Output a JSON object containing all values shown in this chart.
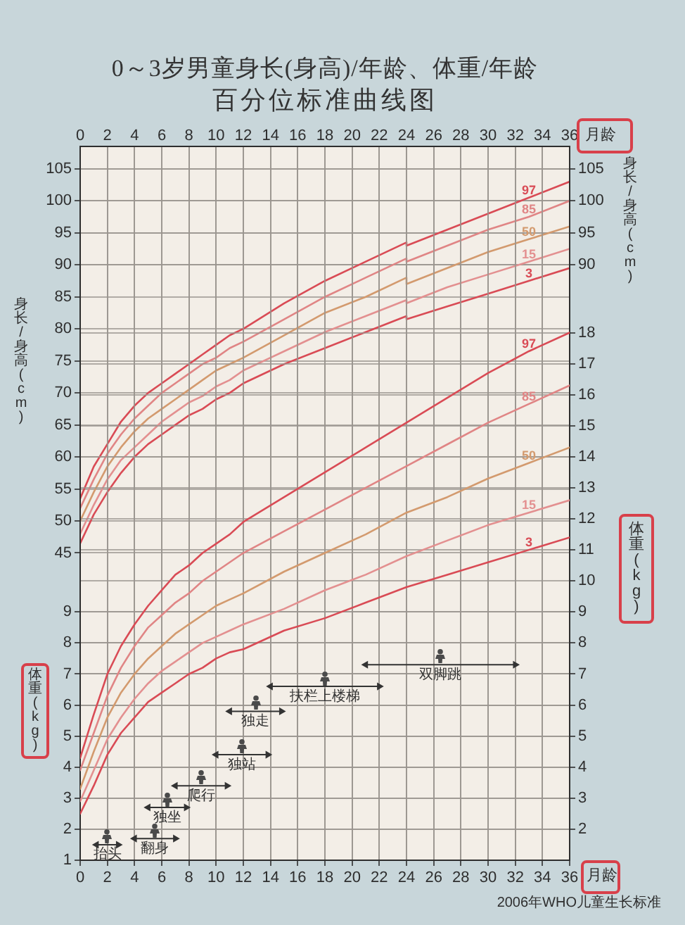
{
  "chart_data": [
    {
      "type": "line",
      "title": "0～3岁男童身长(身高)/年龄、体重/年龄",
      "subtitle": "百分位标准曲线图",
      "x2label": "月龄",
      "ylabel": "身长/身高(cm)",
      "y2label": "身长/身高(cm)",
      "xlim": [
        0,
        36
      ],
      "x2lim": [
        0,
        36
      ],
      "x2ticks": [
        0,
        2,
        4,
        6,
        8,
        10,
        12,
        14,
        16,
        18,
        20,
        22,
        24,
        26,
        28,
        30,
        32,
        34,
        36
      ],
      "ylim": [
        -3,
        108.5
      ],
      "yticks": [
        45,
        50,
        55,
        60,
        65,
        70,
        75,
        80,
        85,
        90,
        95,
        100,
        105
      ],
      "y2lim": [
        -3,
        108.5
      ],
      "y2ticks": [
        90,
        95,
        100,
        105
      ],
      "grid": true,
      "series": [
        {
          "name": "97",
          "color": "#d94b55",
          "x": [
            0,
            1,
            2,
            3,
            4,
            5,
            6,
            7,
            8,
            9,
            10,
            11,
            12,
            15,
            18,
            21,
            24,
            24,
            27,
            30,
            33,
            36
          ],
          "values": [
            53.5,
            58.5,
            62,
            65.5,
            68,
            70,
            71.5,
            73,
            74.5,
            76,
            77.5,
            79,
            80,
            84,
            87.5,
            90.5,
            93.5,
            93,
            95.5,
            98,
            100.5,
            103
          ]
        },
        {
          "name": "85",
          "color": "#e08585",
          "x": [
            0,
            1,
            2,
            3,
            4,
            5,
            6,
            7,
            8,
            9,
            10,
            11,
            12,
            15,
            18,
            21,
            24,
            24,
            27,
            30,
            33,
            36
          ],
          "values": [
            52,
            56.5,
            60.5,
            63.5,
            66,
            68,
            70,
            71.5,
            73,
            74.5,
            75.5,
            77,
            78,
            81.5,
            85,
            88,
            91,
            90.5,
            93,
            95.5,
            97.5,
            100
          ]
        },
        {
          "name": "50",
          "color": "#d39a6e",
          "x": [
            0,
            1,
            2,
            3,
            4,
            5,
            6,
            7,
            8,
            9,
            10,
            11,
            12,
            15,
            18,
            21,
            24,
            24,
            27,
            30,
            33,
            36
          ],
          "values": [
            50,
            54.5,
            58.5,
            61.5,
            64,
            66,
            67.5,
            69,
            70.5,
            72,
            73.5,
            74.5,
            75.5,
            79,
            82.5,
            85,
            88,
            87,
            89.5,
            92,
            94,
            96
          ]
        },
        {
          "name": "15",
          "color": "#e39090",
          "x": [
            0,
            1,
            2,
            3,
            4,
            5,
            6,
            7,
            8,
            9,
            10,
            11,
            12,
            15,
            18,
            21,
            24,
            24,
            27,
            30,
            33,
            36
          ],
          "values": [
            48,
            52.5,
            56.5,
            59.5,
            61.5,
            63.5,
            65.5,
            67,
            68.5,
            69.5,
            71,
            72,
            73.5,
            76.5,
            79.5,
            82,
            84.5,
            84,
            86.5,
            88.5,
            90.5,
            92.5
          ]
        },
        {
          "name": "3",
          "color": "#d94b55",
          "x": [
            0,
            1,
            2,
            3,
            4,
            5,
            6,
            7,
            8,
            9,
            10,
            11,
            12,
            15,
            18,
            21,
            24,
            24,
            27,
            30,
            33,
            36
          ],
          "values": [
            46.5,
            51,
            54.5,
            57.5,
            60,
            62,
            63.5,
            65,
            66.5,
            67.5,
            69,
            70,
            71.5,
            74.5,
            77,
            79.5,
            82,
            81.5,
            83.5,
            85.5,
            87.5,
            89.5
          ]
        }
      ]
    },
    {
      "type": "line",
      "xlabel": "月龄",
      "ylabel": "体重(kg)",
      "y2label": "体重(kg)",
      "xlim": [
        0,
        36
      ],
      "xticks": [
        0,
        2,
        4,
        6,
        8,
        10,
        12,
        14,
        16,
        18,
        20,
        22,
        24,
        26,
        28,
        30,
        32,
        34,
        36
      ],
      "ylim": [
        1,
        24
      ],
      "yticks": [
        1,
        2,
        3,
        4,
        5,
        6,
        7,
        8,
        9
      ],
      "y2lim": [
        1,
        24
      ],
      "y2ticks": [
        2,
        3,
        4,
        5,
        6,
        7,
        8,
        9,
        10,
        11,
        12,
        13,
        14,
        15,
        16,
        17,
        18
      ],
      "grid": true,
      "annotations": [
        "2006年WHO儿童生长标准"
      ],
      "series": [
        {
          "name": "97",
          "color": "#d94b55",
          "x": [
            0,
            1,
            2,
            3,
            4,
            5,
            6,
            7,
            8,
            9,
            10,
            11,
            12,
            15,
            18,
            21,
            24,
            27,
            30,
            33,
            36
          ],
          "values": [
            4.3,
            5.7,
            7.0,
            7.9,
            8.6,
            9.2,
            9.7,
            10.2,
            10.5,
            10.9,
            11.2,
            11.5,
            11.9,
            12.7,
            13.5,
            14.3,
            15.1,
            15.9,
            16.7,
            17.4,
            18.0
          ]
        },
        {
          "name": "85",
          "color": "#e08585",
          "x": [
            0,
            1,
            2,
            3,
            4,
            5,
            6,
            7,
            8,
            9,
            10,
            11,
            12,
            15,
            18,
            21,
            24,
            27,
            30,
            33,
            36
          ],
          "values": [
            3.9,
            5.1,
            6.3,
            7.2,
            7.9,
            8.5,
            8.9,
            9.3,
            9.6,
            10.0,
            10.3,
            10.6,
            10.9,
            11.6,
            12.3,
            13.0,
            13.7,
            14.4,
            15.1,
            15.7,
            16.3
          ]
        },
        {
          "name": "50",
          "color": "#d39a6e",
          "x": [
            0,
            1,
            2,
            3,
            4,
            5,
            6,
            7,
            8,
            9,
            10,
            11,
            12,
            15,
            18,
            21,
            24,
            27,
            30,
            33,
            36
          ],
          "values": [
            3.3,
            4.5,
            5.6,
            6.4,
            7.0,
            7.5,
            7.9,
            8.3,
            8.6,
            8.9,
            9.2,
            9.4,
            9.6,
            10.3,
            10.9,
            11.5,
            12.2,
            12.7,
            13.3,
            13.8,
            14.3
          ]
        },
        {
          "name": "15",
          "color": "#e39090",
          "x": [
            0,
            1,
            2,
            3,
            4,
            5,
            6,
            7,
            8,
            9,
            10,
            11,
            12,
            15,
            18,
            21,
            24,
            27,
            30,
            33,
            36
          ],
          "values": [
            2.9,
            3.9,
            4.9,
            5.6,
            6.2,
            6.7,
            7.1,
            7.4,
            7.7,
            8.0,
            8.2,
            8.4,
            8.6,
            9.1,
            9.7,
            10.2,
            10.8,
            11.3,
            11.8,
            12.2,
            12.6
          ]
        },
        {
          "name": "3",
          "color": "#d94b55",
          "x": [
            0,
            1,
            2,
            3,
            4,
            5,
            6,
            7,
            8,
            9,
            10,
            11,
            12,
            15,
            18,
            21,
            24,
            27,
            30,
            33,
            36
          ],
          "values": [
            2.5,
            3.4,
            4.4,
            5.1,
            5.6,
            6.1,
            6.4,
            6.7,
            7.0,
            7.2,
            7.5,
            7.7,
            7.8,
            8.4,
            8.8,
            9.3,
            9.8,
            10.2,
            10.6,
            11.0,
            11.4
          ]
        },
        {
          "name": "抬头",
          "color": "#333333",
          "marker": "triangle",
          "x": [
            1.2,
            2.8
          ],
          "values": [
            1.5,
            1.5
          ]
        },
        {
          "name": "翻身",
          "color": "#333333",
          "marker": "triangle",
          "x": [
            4,
            7
          ],
          "values": [
            1.7,
            1.7
          ]
        },
        {
          "name": "独坐",
          "color": "#333333",
          "marker": "triangle",
          "x": [
            5,
            7.8
          ],
          "values": [
            2.7,
            2.7
          ]
        },
        {
          "name": "爬行",
          "color": "#333333",
          "marker": "triangle",
          "x": [
            7,
            10.8
          ],
          "values": [
            3.4,
            3.4
          ]
        },
        {
          "name": "独站",
          "color": "#333333",
          "marker": "triangle",
          "x": [
            10,
            13.8
          ],
          "values": [
            4.4,
            4.4
          ]
        },
        {
          "name": "独走",
          "color": "#333333",
          "marker": "triangle",
          "x": [
            11,
            14.8
          ],
          "values": [
            5.8,
            5.8
          ]
        },
        {
          "name": "扶栏上楼梯",
          "color": "#333333",
          "marker": "triangle",
          "x": [
            14,
            22
          ],
          "values": [
            6.6,
            6.6
          ]
        },
        {
          "name": "双脚跳",
          "color": "#333333",
          "marker": "triangle",
          "x": [
            21,
            32
          ],
          "values": [
            7.3,
            7.3
          ]
        }
      ]
    }
  ]
}
